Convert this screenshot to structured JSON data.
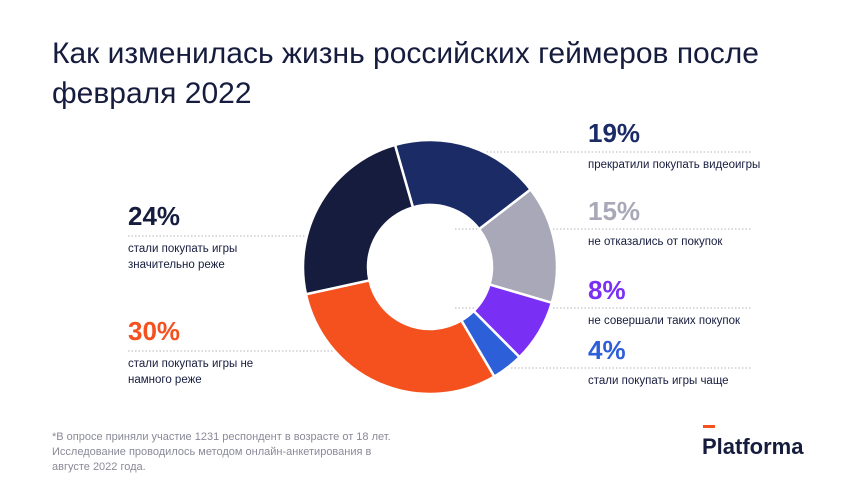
{
  "chart_data": {
    "type": "pie",
    "title": "Как изменилась жизнь российских геймеров после февраля 2022",
    "categories": [
      "прекратили покупать видеоигры",
      "не отказались от покупок",
      "не совершали таких покупок",
      "стали покупать игры чаще",
      "стали покупать игры не намного реже",
      "стали покупать игры значительно реже"
    ],
    "values": [
      19,
      15,
      8,
      4,
      30,
      24
    ],
    "value_labels": [
      "19%",
      "15%",
      "8%",
      "4%",
      "30%",
      "24%"
    ],
    "colors": [
      "#1b2b66",
      "#a8a8b8",
      "#7a2ff5",
      "#2c5fd8",
      "#f4511e",
      "#161c3d"
    ],
    "footnote": "*В опросе приняли участие 1231 респондент в возрасте от 18 лет. Исследование проводилось методом онлайн-анкетирования в августе 2022 года.",
    "logo": "Platforma"
  }
}
